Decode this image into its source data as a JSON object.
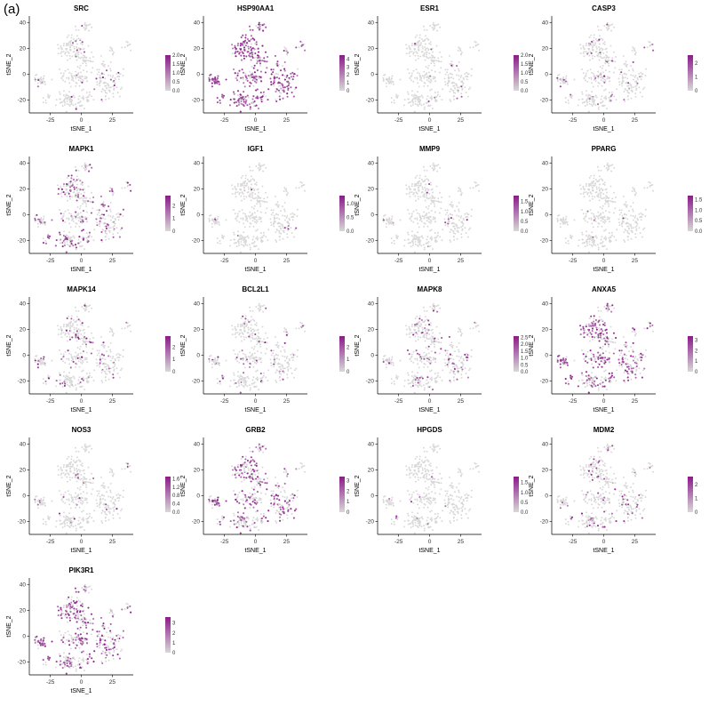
{
  "figure": {
    "panel_label": "(a)"
  },
  "colors": {
    "low": "#d8d8d8",
    "high": "#8b1a89",
    "axis": "#000000"
  },
  "chart_data": [
    {
      "type": "scatter",
      "title": "SRC",
      "xlabel": "tSNE_1",
      "ylabel": "tSNE_2",
      "x_ticks": [
        -25,
        0,
        25
      ],
      "y_ticks": [
        -20,
        0,
        20,
        40
      ],
      "xlim": [
        -42,
        42
      ],
      "ylim": [
        -30,
        45
      ],
      "legend": {
        "max": 2.0,
        "ticks": [
          "2.0",
          "1.5",
          "1.0",
          "0.5",
          "0.0"
        ],
        "tick_values": [
          2.0,
          1.5,
          1.0,
          0.5,
          0.0
        ]
      },
      "expression_level": 0.08
    },
    {
      "type": "scatter",
      "title": "HSP90AA1",
      "xlabel": "tSNE_1",
      "ylabel": "tSNE_2",
      "x_ticks": [
        -25,
        0,
        25
      ],
      "y_ticks": [
        -20,
        0,
        20,
        40
      ],
      "xlim": [
        -42,
        42
      ],
      "ylim": [
        -30,
        45
      ],
      "legend": {
        "max": 4.5,
        "ticks": [
          "4",
          "3",
          "2",
          "1",
          "0"
        ],
        "tick_values": [
          4,
          3,
          2,
          1,
          0
        ]
      },
      "expression_level": 0.9
    },
    {
      "type": "scatter",
      "title": "ESR1",
      "xlabel": "tSNE_1",
      "ylabel": "tSNE_2",
      "x_ticks": [
        -25,
        0,
        25
      ],
      "y_ticks": [
        -20,
        0,
        20,
        40
      ],
      "xlim": [
        -42,
        42
      ],
      "ylim": [
        -30,
        45
      ],
      "legend": {
        "max": 2.0,
        "ticks": [
          "2.0",
          "1.5",
          "1.0",
          "0.5",
          "0.0"
        ],
        "tick_values": [
          2.0,
          1.5,
          1.0,
          0.5,
          0.0
        ]
      },
      "expression_level": 0.02
    },
    {
      "type": "scatter",
      "title": "CASP3",
      "xlabel": "tSNE_1",
      "ylabel": "tSNE_2",
      "x_ticks": [
        -25,
        0,
        25
      ],
      "y_ticks": [
        -20,
        0,
        20,
        40
      ],
      "xlim": [
        -42,
        42
      ],
      "ylim": [
        -30,
        45
      ],
      "legend": {
        "max": 2.6,
        "ticks": [
          "2",
          "1",
          "0"
        ],
        "tick_values": [
          2,
          1,
          0
        ]
      },
      "expression_level": 0.12
    },
    {
      "type": "scatter",
      "title": "MAPK1",
      "xlabel": "tSNE_1",
      "ylabel": "tSNE_2",
      "x_ticks": [
        -25,
        0,
        25
      ],
      "y_ticks": [
        -20,
        0,
        20,
        40
      ],
      "xlim": [
        -42,
        42
      ],
      "ylim": [
        -30,
        45
      ],
      "legend": {
        "max": 2.8,
        "ticks": [
          "2",
          "1",
          "0"
        ],
        "tick_values": [
          2,
          1,
          0
        ]
      },
      "expression_level": 0.35
    },
    {
      "type": "scatter",
      "title": "IGF1",
      "xlabel": "tSNE_1",
      "ylabel": "tSNE_2",
      "x_ticks": [
        -25,
        0,
        25
      ],
      "y_ticks": [
        -20,
        0,
        20,
        40
      ],
      "xlim": [
        -42,
        42
      ],
      "ylim": [
        -30,
        45
      ],
      "legend": {
        "max": 1.3,
        "ticks": [
          "1.0",
          "0.5",
          "0.0"
        ],
        "tick_values": [
          1.0,
          0.5,
          0.0
        ]
      },
      "expression_level": 0.02
    },
    {
      "type": "scatter",
      "title": "MMP9",
      "xlabel": "tSNE_1",
      "ylabel": "tSNE_2",
      "x_ticks": [
        -25,
        0,
        25
      ],
      "y_ticks": [
        -20,
        0,
        20,
        40
      ],
      "xlim": [
        -42,
        42
      ],
      "ylim": [
        -30,
        45
      ],
      "legend": {
        "max": 1.8,
        "ticks": [
          "1.5",
          "1.0",
          "0.5",
          "0.0"
        ],
        "tick_values": [
          1.5,
          1.0,
          0.5,
          0.0
        ]
      },
      "expression_level": 0.02
    },
    {
      "type": "scatter",
      "title": "PPARG",
      "xlabel": "tSNE_1",
      "ylabel": "tSNE_2",
      "x_ticks": [
        -25,
        0,
        25
      ],
      "y_ticks": [
        -20,
        0,
        20,
        40
      ],
      "xlim": [
        -42,
        42
      ],
      "ylim": [
        -30,
        45
      ],
      "legend": {
        "max": 1.7,
        "ticks": [
          "1.5",
          "1.0",
          "0.5",
          "0.0"
        ],
        "tick_values": [
          1.5,
          1.0,
          0.5,
          0.0
        ]
      },
      "expression_level": 0.02
    },
    {
      "type": "scatter",
      "title": "MAPK14",
      "xlabel": "tSNE_1",
      "ylabel": "tSNE_2",
      "x_ticks": [
        -25,
        0,
        25
      ],
      "y_ticks": [
        -20,
        0,
        20,
        40
      ],
      "xlim": [
        -42,
        42
      ],
      "ylim": [
        -30,
        45
      ],
      "legend": {
        "max": 2.9,
        "ticks": [
          "2",
          "1",
          "0"
        ],
        "tick_values": [
          2,
          1,
          0
        ]
      },
      "expression_level": 0.15
    },
    {
      "type": "scatter",
      "title": "BCL2L1",
      "xlabel": "tSNE_1",
      "ylabel": "tSNE_2",
      "x_ticks": [
        -25,
        0,
        25
      ],
      "y_ticks": [
        -20,
        0,
        20,
        40
      ],
      "xlim": [
        -42,
        42
      ],
      "ylim": [
        -30,
        45
      ],
      "legend": {
        "max": 2.9,
        "ticks": [
          "2",
          "1",
          "0"
        ],
        "tick_values": [
          2,
          1,
          0
        ]
      },
      "expression_level": 0.1
    },
    {
      "type": "scatter",
      "title": "MAPK8",
      "xlabel": "tSNE_1",
      "ylabel": "tSNE_2",
      "x_ticks": [
        -25,
        0,
        25
      ],
      "y_ticks": [
        -20,
        0,
        20,
        40
      ],
      "xlim": [
        -42,
        42
      ],
      "ylim": [
        -30,
        45
      ],
      "legend": {
        "max": 2.6,
        "ticks": [
          "2.5",
          "2.0",
          "1.5",
          "1.0",
          "0.5",
          "0.0"
        ],
        "tick_values": [
          2.5,
          2.0,
          1.5,
          1.0,
          0.5,
          0.0
        ]
      },
      "expression_level": 0.2
    },
    {
      "type": "scatter",
      "title": "ANXA5",
      "xlabel": "tSNE_1",
      "ylabel": "tSNE_2",
      "x_ticks": [
        -25,
        0,
        25
      ],
      "y_ticks": [
        -20,
        0,
        20,
        40
      ],
      "xlim": [
        -42,
        42
      ],
      "ylim": [
        -30,
        45
      ],
      "legend": {
        "max": 3.4,
        "ticks": [
          "3",
          "2",
          "1",
          "0"
        ],
        "tick_values": [
          3,
          2,
          1,
          0
        ]
      },
      "expression_level": 0.55
    },
    {
      "type": "scatter",
      "title": "NOS3",
      "xlabel": "tSNE_1",
      "ylabel": "tSNE_2",
      "x_ticks": [
        -25,
        0,
        25
      ],
      "y_ticks": [
        -20,
        0,
        20,
        40
      ],
      "xlim": [
        -42,
        42
      ],
      "ylim": [
        -30,
        45
      ],
      "legend": {
        "max": 1.7,
        "ticks": [
          "1.6",
          "1.2",
          "0.8",
          "0.4",
          "0.0"
        ],
        "tick_values": [
          1.6,
          1.2,
          0.8,
          0.4,
          0.0
        ]
      },
      "expression_level": 0.03
    },
    {
      "type": "scatter",
      "title": "GRB2",
      "xlabel": "tSNE_1",
      "ylabel": "tSNE_2",
      "x_ticks": [
        -25,
        0,
        25
      ],
      "y_ticks": [
        -20,
        0,
        20,
        40
      ],
      "xlim": [
        -42,
        42
      ],
      "ylim": [
        -30,
        45
      ],
      "legend": {
        "max": 3.4,
        "ticks": [
          "3",
          "2",
          "1",
          "0"
        ],
        "tick_values": [
          3,
          2,
          1,
          0
        ]
      },
      "expression_level": 0.5
    },
    {
      "type": "scatter",
      "title": "HPGDS",
      "xlabel": "tSNE_1",
      "ylabel": "tSNE_2",
      "x_ticks": [
        -25,
        0,
        25
      ],
      "y_ticks": [
        -20,
        0,
        20,
        40
      ],
      "xlim": [
        -42,
        42
      ],
      "ylim": [
        -30,
        45
      ],
      "legend": {
        "max": 1.8,
        "ticks": [
          "1.5",
          "1.0",
          "0.5",
          "0.0"
        ],
        "tick_values": [
          1.5,
          1.0,
          0.5,
          0.0
        ]
      },
      "expression_level": 0.02
    },
    {
      "type": "scatter",
      "title": "MDM2",
      "xlabel": "tSNE_1",
      "ylabel": "tSNE_2",
      "x_ticks": [
        -25,
        0,
        25
      ],
      "y_ticks": [
        -20,
        0,
        20,
        40
      ],
      "xlim": [
        -42,
        42
      ],
      "ylim": [
        -30,
        45
      ],
      "legend": {
        "max": 2.6,
        "ticks": [
          "2",
          "1",
          "0"
        ],
        "tick_values": [
          2,
          1,
          0
        ]
      },
      "expression_level": 0.15
    },
    {
      "type": "scatter",
      "title": "PIK3R1",
      "xlabel": "tSNE_1",
      "ylabel": "tSNE_2",
      "x_ticks": [
        -25,
        0,
        25
      ],
      "y_ticks": [
        -20,
        0,
        20,
        40
      ],
      "xlim": [
        -42,
        42
      ],
      "ylim": [
        -30,
        45
      ],
      "legend": {
        "max": 3.6,
        "ticks": [
          "3",
          "2",
          "1",
          "0"
        ],
        "tick_values": [
          3,
          2,
          1,
          0
        ]
      },
      "expression_level": 0.6
    }
  ]
}
